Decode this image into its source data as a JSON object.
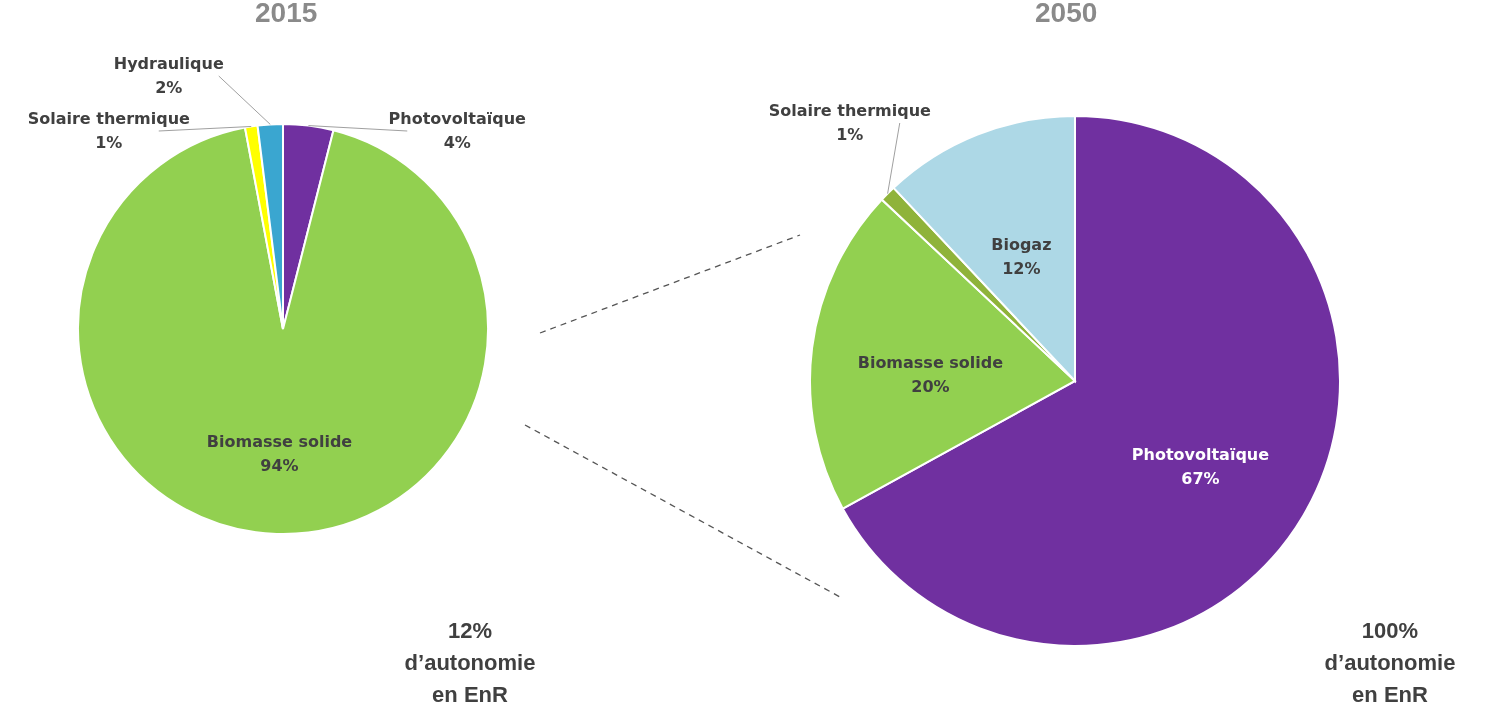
{
  "chart_data": [
    {
      "type": "pie",
      "title": "2015",
      "categories": [
        "Photovoltaïque",
        "Biomasse solide",
        "Solaire thermique",
        "Hydraulique"
      ],
      "values": [
        4,
        94,
        1,
        2
      ],
      "colors": [
        "#7030a0",
        "#92d050",
        "#ffff00",
        "#3aa6d0"
      ],
      "value_labels": [
        "4%",
        "94%",
        "1%",
        "2%"
      ],
      "annotations": [
        "12% d’autonomie en EnR"
      ]
    },
    {
      "type": "pie",
      "title": "2050",
      "categories": [
        "Photovoltaïque",
        "Biomasse solide",
        "Solaire thermique",
        "Biogaz"
      ],
      "values": [
        67,
        20,
        1,
        12
      ],
      "colors": [
        "#7030a0",
        "#92d050",
        "#8fb33a",
        "#add8e6"
      ],
      "value_labels": [
        "67%",
        "20%",
        "1%",
        "12%"
      ],
      "annotations": [
        "100% d’autonomie en EnR"
      ]
    }
  ]
}
